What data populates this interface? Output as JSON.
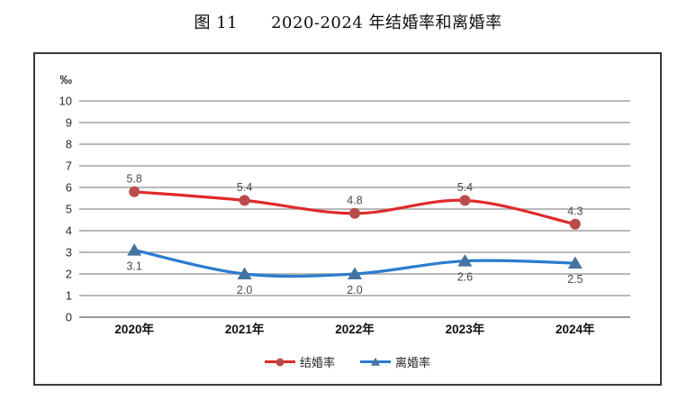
{
  "title": "图 11　　2020-2024 年结婚率和离婚率",
  "chart_data": {
    "type": "line",
    "title": "图 11　　2020-2024 年结婚率和离婚率",
    "unit_label": "‰",
    "xlabel": "",
    "ylabel": "",
    "ylim": [
      0,
      10
    ],
    "ytick_step": 1,
    "grid": true,
    "line_smoothing": true,
    "legend_position": "bottom-center",
    "categories": [
      "2020年",
      "2021年",
      "2022年",
      "2023年",
      "2024年"
    ],
    "series": [
      {
        "name": "结婚率",
        "values": [
          5.8,
          5.4,
          4.8,
          5.4,
          4.3
        ],
        "labels": [
          "5.8",
          "5.4",
          "4.8",
          "5.4",
          "4.3"
        ],
        "label_position": "above",
        "marker": "circle",
        "line_color": "#e02a2a",
        "marker_color": "#b94c49"
      },
      {
        "name": "离婚率",
        "values": [
          3.1,
          2.0,
          2.0,
          2.6,
          2.5
        ],
        "labels": [
          "3.1",
          "2.0",
          "2.0",
          "2.6",
          "2.5"
        ],
        "label_position": "below",
        "marker": "triangle",
        "line_color": "#2b7cce",
        "marker_color": "#44739f"
      }
    ]
  },
  "colors": {
    "grid_line": "#a2a2a2",
    "zero_line": "#8c8c8c",
    "frame_border": "#3a3a3a",
    "tick_label": "#2b2b2b",
    "axis_label": "#111111",
    "data_label": "#4a4a4a",
    "background": "#ffffff"
  }
}
